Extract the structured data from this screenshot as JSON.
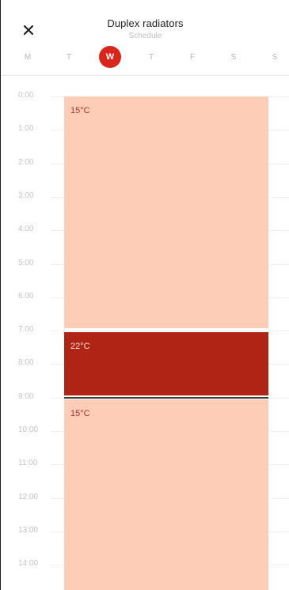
{
  "header": {
    "title": "Duplex radiators",
    "subtitle": "Schedule",
    "close_icon": "close-icon"
  },
  "days": [
    {
      "label": "M",
      "active": false
    },
    {
      "label": "T",
      "active": false
    },
    {
      "label": "W",
      "active": true
    },
    {
      "label": "T",
      "active": false
    },
    {
      "label": "F",
      "active": false
    },
    {
      "label": "S",
      "active": false
    },
    {
      "label": "S",
      "active": false
    }
  ],
  "hours": [
    "0:00",
    "1:00",
    "2:00",
    "3:00",
    "4:00",
    "5:00",
    "6:00",
    "7:00",
    "8:00",
    "9:00",
    "10:00",
    "11:00",
    "12:00",
    "13:00",
    "14:00"
  ],
  "schedule": [
    {
      "temp": "15°C",
      "start": 0,
      "end": 7,
      "level": "low"
    },
    {
      "temp": "22°C",
      "start": 7,
      "end": 9,
      "level": "high"
    },
    {
      "temp": "15°C",
      "start": 9,
      "end": 15,
      "level": "low"
    }
  ],
  "colors": {
    "accent": "#d9261c",
    "high": "#b02416",
    "low": "#fdcdb8"
  }
}
